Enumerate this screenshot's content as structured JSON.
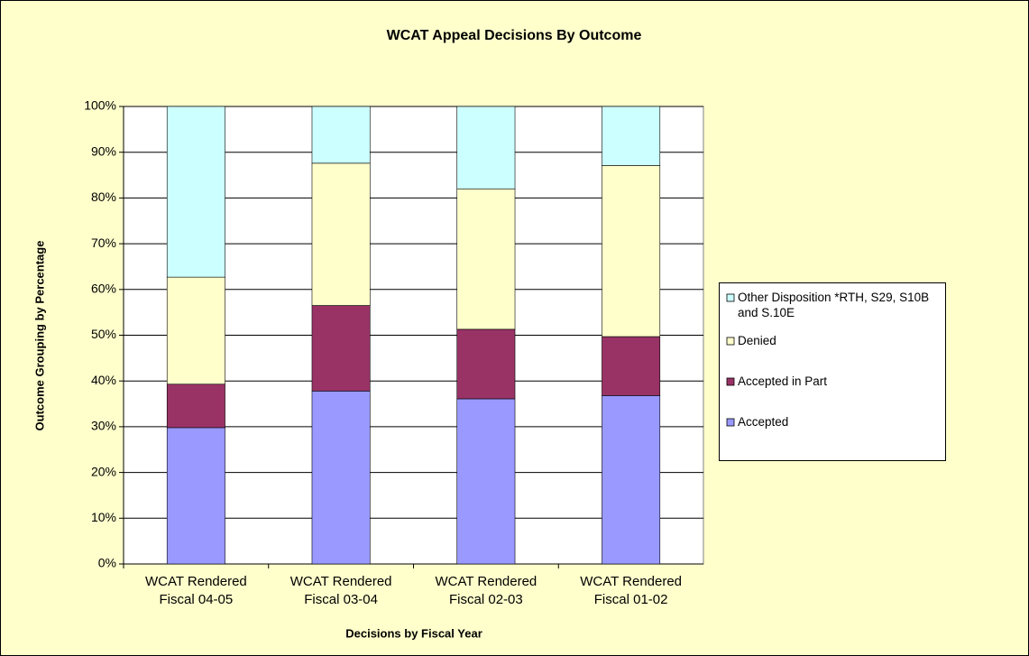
{
  "chart_data": {
    "type": "stacked_bar_100",
    "title": "WCAT Appeal Decisions By Outcome",
    "x_label": "Decisions by Fiscal Year",
    "y_label": "Outcome Grouping by Percentage",
    "categories": [
      "WCAT Rendered Fiscal 04-05",
      "WCAT Rendered Fiscal 03-04",
      "WCAT Rendered Fiscal 02-03",
      "WCAT Rendered Fiscal 01-02"
    ],
    "series": [
      {
        "name": "Accepted",
        "color": "#9999ff",
        "values": [
          29.8,
          37.8,
          36.1,
          36.8
        ]
      },
      {
        "name": "Accepted in Part",
        "color": "#993366",
        "values": [
          9.5,
          18.7,
          15.2,
          12.9
        ]
      },
      {
        "name": "Denied",
        "color": "#ffffcc",
        "values": [
          23.4,
          31.1,
          30.7,
          37.4
        ]
      },
      {
        "name": "Other Disposition *RTH, S29, S10B and S.10E",
        "color": "#ccffff",
        "values": [
          37.3,
          12.4,
          18.0,
          12.9
        ]
      }
    ],
    "ylim": [
      0,
      100
    ],
    "yticks": [
      {
        "value": 0,
        "label": "0%"
      },
      {
        "value": 10,
        "label": "10%"
      },
      {
        "value": 20,
        "label": "20%"
      },
      {
        "value": 30,
        "label": "30%"
      },
      {
        "value": 40,
        "label": "40%"
      },
      {
        "value": 50,
        "label": "50%"
      },
      {
        "value": 60,
        "label": "60%"
      },
      {
        "value": 70,
        "label": "70%"
      },
      {
        "value": 80,
        "label": "80%"
      },
      {
        "value": 90,
        "label": "90%"
      },
      {
        "value": 100,
        "label": "100%"
      }
    ],
    "grid": true,
    "legend": "right"
  }
}
